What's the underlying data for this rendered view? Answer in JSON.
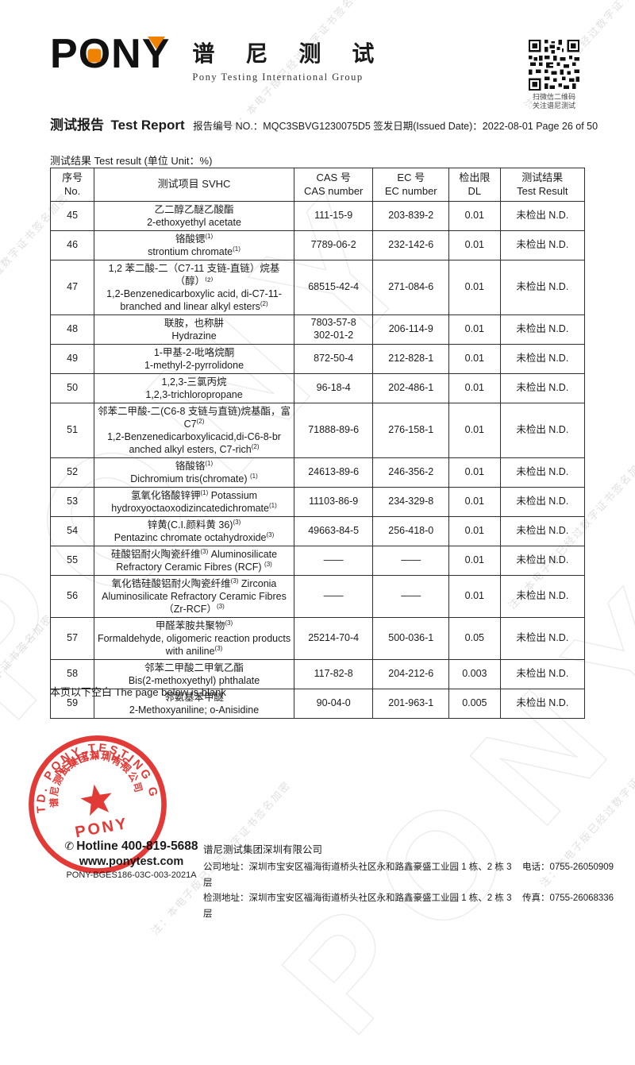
{
  "watermark": {
    "note": "注：本电子版已经过数字证书签名加密",
    "brand": "PONY"
  },
  "header": {
    "logo_text_p": "P",
    "logo_text_o": "O",
    "logo_text_n": "N",
    "logo_text_y": "Y",
    "logo_cn": "谱 尼 测 试",
    "logo_sub": "Pony Testing International Group",
    "qr_caption_line1": "扫微信二维码",
    "qr_caption_line2": "关注谱尼测试"
  },
  "report": {
    "title_cn": "测试报告",
    "title_en": "Test Report",
    "meta": "报告编号 NO.：MQC3SBVG1230075D5 签发日期(Issued Date)：2022-08-01 Page 26 of 50"
  },
  "table": {
    "caption": "测试结果 Test result (单位 Unit：%)",
    "headers": {
      "no": {
        "line1": "序号",
        "line2": "No."
      },
      "name": {
        "line1": "测试项目  SVHC",
        "line2": ""
      },
      "cas": {
        "line1": "CAS  号",
        "line2": "CAS number"
      },
      "ec": {
        "line1": "EC 号",
        "line2": "EC number"
      },
      "dl": {
        "line1": "检出限",
        "line2": "DL"
      },
      "result": {
        "line1": "测试结果",
        "line2": "Test Result"
      }
    },
    "rows": [
      {
        "no": "45",
        "name": [
          "乙二醇乙醚乙酸酯",
          "2-ethoxyethyl acetate"
        ],
        "cas": [
          "111-15-9"
        ],
        "ec": "203-839-2",
        "dl": "0.01",
        "result": "未检出 N.D."
      },
      {
        "no": "46",
        "name": [
          "铬酸锶(1)",
          "strontium chromate(1)"
        ],
        "cas": [
          "7789-06-2"
        ],
        "ec": "232-142-6",
        "dl": "0.01",
        "result": "未检出 N.D."
      },
      {
        "no": "47",
        "name": [
          "1,2 苯二酸-二（C7-11 支链-直链）烷基（醇）⁽²⁾",
          "1,2-Benzenedicarboxylic acid, di-C7-11-branched and linear alkyl esters(2)"
        ],
        "cas": [
          "68515-42-4"
        ],
        "ec": "271-084-6",
        "dl": "0.01",
        "result": "未检出 N.D."
      },
      {
        "no": "48",
        "name": [
          "联胺，也称肼",
          "Hydrazine"
        ],
        "cas": [
          "7803-57-8",
          "302-01-2"
        ],
        "ec": "206-114-9",
        "dl": "0.01",
        "result": "未检出 N.D."
      },
      {
        "no": "49",
        "name": [
          "1-甲基-2-吡咯烷酮",
          "1-methyl-2-pyrrolidone"
        ],
        "cas": [
          "872-50-4"
        ],
        "ec": "212-828-1",
        "dl": "0.01",
        "result": "未检出 N.D."
      },
      {
        "no": "50",
        "name": [
          "1,2,3-三氯丙烷",
          "1,2,3-trichloropropane"
        ],
        "cas": [
          "96-18-4"
        ],
        "ec": "202-486-1",
        "dl": "0.01",
        "result": "未检出 N.D."
      },
      {
        "no": "51",
        "name": [
          "邻苯二甲酸-二(C6-8 支链与直链)烷基酯，富 C7(2)",
          "1,2-Benzenedicarboxylicacid,di-C6-8-br anched alkyl esters, C7-rich(2)"
        ],
        "cas": [
          "71888-89-6"
        ],
        "ec": "276-158-1",
        "dl": "0.01",
        "result": "未检出 N.D."
      },
      {
        "no": "52",
        "name": [
          "铬酸铬(1)",
          "Dichromium tris(chromate) (1)"
        ],
        "cas": [
          "24613-89-6"
        ],
        "ec": "246-356-2",
        "dl": "0.01",
        "result": "未检出 N.D."
      },
      {
        "no": "53",
        "name": [
          "氢氧化铬酸锌钾(1) Potassium hydroxyoctaoxodizincatedichromate(1)"
        ],
        "cas": [
          "11103-86-9"
        ],
        "ec": "234-329-8",
        "dl": "0.01",
        "result": "未检出 N.D."
      },
      {
        "no": "54",
        "name": [
          "锌黄(C.I.颜料黄  36)(3)",
          "Pentazinc chromate octahydroxide(3)"
        ],
        "cas": [
          "49663-84-5"
        ],
        "ec": "256-418-0",
        "dl": "0.01",
        "result": "未检出 N.D."
      },
      {
        "no": "55",
        "name": [
          "硅酸铝耐火陶瓷纤维(3) Aluminosilicate Refractory Ceramic Fibres (RCF) (3)"
        ],
        "cas": [
          "——"
        ],
        "ec": "——",
        "dl": "0.01",
        "result": "未检出 N.D."
      },
      {
        "no": "56",
        "name": [
          "氧化锆硅酸铝耐火陶瓷纤维(3) Zirconia Aluminosilicate Refractory Ceramic Fibres（Zr-RCF）(3)"
        ],
        "cas": [
          "——"
        ],
        "ec": "——",
        "dl": "0.01",
        "result": "未检出 N.D."
      },
      {
        "no": "57",
        "name": [
          "甲醛苯胺共聚物(3)",
          "Formaldehyde, oligomeric reaction products with aniline(3)"
        ],
        "cas": [
          "25214-70-4"
        ],
        "ec": "500-036-1",
        "dl": "0.05",
        "result": "未检出 N.D."
      },
      {
        "no": "58",
        "name": [
          "邻苯二甲酸二甲氧乙酯",
          "Bis(2-methoxyethyl) phthalate"
        ],
        "cas": [
          "117-82-8"
        ],
        "ec": "204-212-6",
        "dl": "0.003",
        "result": "未检出 N.D."
      },
      {
        "no": "59",
        "name": [
          "邻氨基苯甲醚",
          "2-Methoxyaniline; o-Anisidine"
        ],
        "cas": [
          "90-04-0"
        ],
        "ec": "201-963-1",
        "dl": "0.005",
        "result": "未检出 N.D."
      }
    ]
  },
  "below_note": "本页以下空白 The page below is blank",
  "footer": {
    "hotline": "Hotline 400-819-5688",
    "website": "www.ponytest.com",
    "doc_code": "PONY-BGES186-03C-003-2021A",
    "company_name": "谱尼测试集团深圳有限公司",
    "address1": "公司地址：深圳市宝安区福海街道桥头社区永和路鑫豪盛工业园 1 栋、2 栋 3 层",
    "tel": "电话：0755-26050909",
    "address2": "检测地址：深圳市宝安区福海街道桥头社区永和路鑫豪盛工业园 1 栋、2 栋 3 层",
    "fax": "传真：0755-26068336",
    "stamp": {
      "ring_text": "CO., LTD.  PONY  TESTING  GROUP",
      "bottom_text": "SHENZHEN",
      "inner_cn": "谱尼测试集团深圳有限公司",
      "center_text": "PONY",
      "red": "#df231f"
    }
  }
}
